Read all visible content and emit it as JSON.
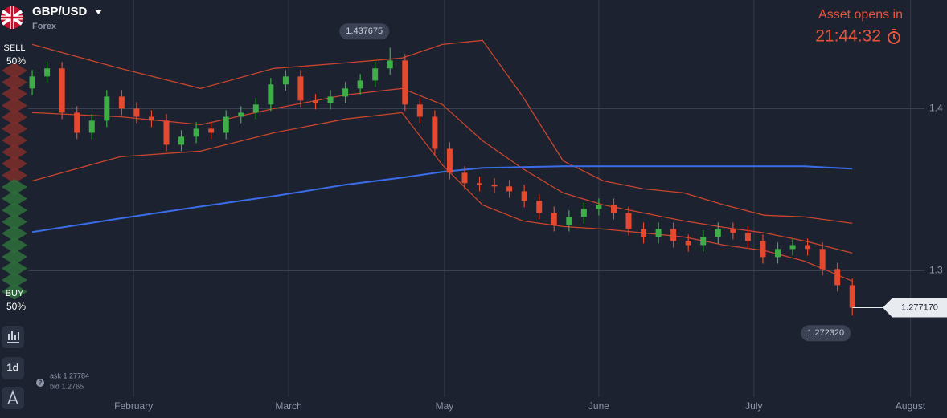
{
  "header": {
    "asset": "GBP/USD",
    "market": "Forex",
    "opens_title": "Asset opens in",
    "countdown": "21:44:32"
  },
  "sidebar": {
    "sell": "SELL",
    "sell_pct": "50%",
    "buy": "BUY",
    "buy_pct": "50%",
    "interval": "1d",
    "ask": "ask 1.27784",
    "bid": "bid 1.2765",
    "help": "?"
  },
  "chart_data": {
    "type": "candlestick",
    "up_color": "#3fae49",
    "down_color": "#e5492f",
    "open": [
      1.4124,
      1.4198,
      1.4248,
      1.3975,
      1.3851,
      1.3926,
      1.4074,
      1.4,
      1.395,
      1.3926,
      1.3777,
      1.3827,
      1.3876,
      1.3851,
      1.395,
      1.3975,
      1.4025,
      1.4149,
      1.4198,
      1.405,
      1.4035,
      1.4074,
      1.4124,
      1.4173,
      1.4248,
      1.4297,
      1.4025,
      1.395,
      1.3752,
      1.3604,
      1.354,
      1.353,
      1.352,
      1.349,
      1.3431,
      1.3356,
      1.3282,
      1.3332,
      1.3381,
      1.3406,
      1.3356,
      1.3257,
      1.3208,
      1.3257,
      1.3183,
      1.3158,
      1.3208,
      1.3257,
      1.3233,
      1.3183,
      1.3084,
      1.3134,
      1.3158,
      1.3134,
      1.301,
      1.2911
    ],
    "high": [
      1.4238,
      1.4288,
      1.4288,
      1.4015,
      1.3966,
      1.4114,
      1.4114,
      1.404,
      1.399,
      1.3966,
      1.3867,
      1.3916,
      1.3916,
      1.399,
      1.4015,
      1.4065,
      1.4189,
      1.4238,
      1.4238,
      1.409,
      1.4114,
      1.4164,
      1.4213,
      1.4288,
      1.437675,
      1.4337,
      1.4065,
      1.399,
      1.3792,
      1.3644,
      1.358,
      1.357,
      1.356,
      1.353,
      1.3471,
      1.3396,
      1.3372,
      1.3421,
      1.3446,
      1.3446,
      1.3396,
      1.3297,
      1.3297,
      1.3297,
      1.3223,
      1.3248,
      1.3297,
      1.3297,
      1.3273,
      1.3223,
      1.3174,
      1.3198,
      1.3198,
      1.3174,
      1.305,
      1.2951
    ],
    "low": [
      1.4084,
      1.4158,
      1.3935,
      1.3811,
      1.3811,
      1.3886,
      1.396,
      1.391,
      1.3886,
      1.3737,
      1.3737,
      1.3787,
      1.3811,
      1.3811,
      1.391,
      1.3935,
      1.3985,
      1.4109,
      1.401,
      1.3995,
      1.3995,
      1.4034,
      1.4084,
      1.4133,
      1.4208,
      1.3985,
      1.391,
      1.3712,
      1.3564,
      1.35,
      1.349,
      1.348,
      1.345,
      1.3391,
      1.3316,
      1.3242,
      1.3242,
      1.3292,
      1.3341,
      1.3316,
      1.3217,
      1.3168,
      1.3168,
      1.3143,
      1.3118,
      1.3118,
      1.3168,
      1.3193,
      1.3143,
      1.3044,
      1.3044,
      1.3094,
      1.3094,
      1.297,
      1.2871,
      1.27232
    ],
    "close": [
      1.4198,
      1.4248,
      1.3975,
      1.3851,
      1.3926,
      1.4074,
      1.4,
      1.395,
      1.3926,
      1.3777,
      1.3827,
      1.3876,
      1.3851,
      1.395,
      1.3975,
      1.4025,
      1.4149,
      1.4198,
      1.405,
      1.4035,
      1.4074,
      1.4124,
      1.4173,
      1.4248,
      1.4297,
      1.4025,
      1.395,
      1.3752,
      1.3604,
      1.354,
      1.353,
      1.352,
      1.349,
      1.3431,
      1.3356,
      1.3282,
      1.3332,
      1.3381,
      1.3406,
      1.3356,
      1.3257,
      1.3208,
      1.3257,
      1.3183,
      1.3158,
      1.3208,
      1.3257,
      1.3233,
      1.3183,
      1.3084,
      1.3134,
      1.3158,
      1.3134,
      1.301,
      1.2911,
      1.27717
    ],
    "bands": {
      "color": "#c9452d",
      "x": [
        0,
        5.9,
        11.3,
        16.2,
        21,
        24.8,
        27.5,
        30.2,
        32.9,
        35.6,
        38.3,
        41,
        43.7,
        46.4,
        49.1,
        51.8,
        55
      ],
      "upper": [
        1.4396,
        1.4248,
        1.4124,
        1.4248,
        1.4282,
        1.4312,
        1.4396,
        1.4421,
        1.4074,
        1.3678,
        1.3554,
        1.3505,
        1.348,
        1.3406,
        1.3342,
        1.3332,
        1.3292
      ],
      "middle": [
        1.3975,
        1.395,
        1.3901,
        1.4,
        1.4084,
        1.4124,
        1.4025,
        1.3802,
        1.3629,
        1.348,
        1.3406,
        1.3356,
        1.3307,
        1.3267,
        1.3233,
        1.3183,
        1.3109
      ],
      "lower": [
        1.3554,
        1.3703,
        1.3738,
        1.3851,
        1.3936,
        1.3975,
        1.3653,
        1.3406,
        1.3307,
        1.3272,
        1.3257,
        1.3233,
        1.3208,
        1.3158,
        1.3124,
        1.3059,
        1.2936
      ]
    },
    "ma": {
      "color": "#3a6ee8",
      "values": [
        1.3238,
        1.3322,
        1.3396,
        1.346,
        1.353,
        1.3574,
        1.3609,
        1.3634,
        1.3639,
        1.3644,
        1.3644,
        1.3644,
        1.3644,
        1.3644,
        1.3644,
        1.3644,
        1.3629
      ]
    },
    "xlim": [
      -2.16,
      59.3
    ],
    "ylim": [
      1.22,
      1.467
    ],
    "xticks": [
      {
        "value": 6.8,
        "label": "February"
      },
      {
        "value": 17.2,
        "label": "March"
      },
      {
        "value": 27.65,
        "label": "May"
      },
      {
        "value": 38.0,
        "label": "June"
      },
      {
        "value": 48.4,
        "label": "July"
      },
      {
        "value": 58.9,
        "label": "August"
      }
    ],
    "yticks": [
      1.3,
      1.4
    ],
    "grid": true,
    "high_label": 1.437675,
    "low_label": {
      "value": 1.27232,
      "label": "1.272320"
    },
    "last_price": {
      "value": 1.27717,
      "label": "1.277170"
    }
  }
}
